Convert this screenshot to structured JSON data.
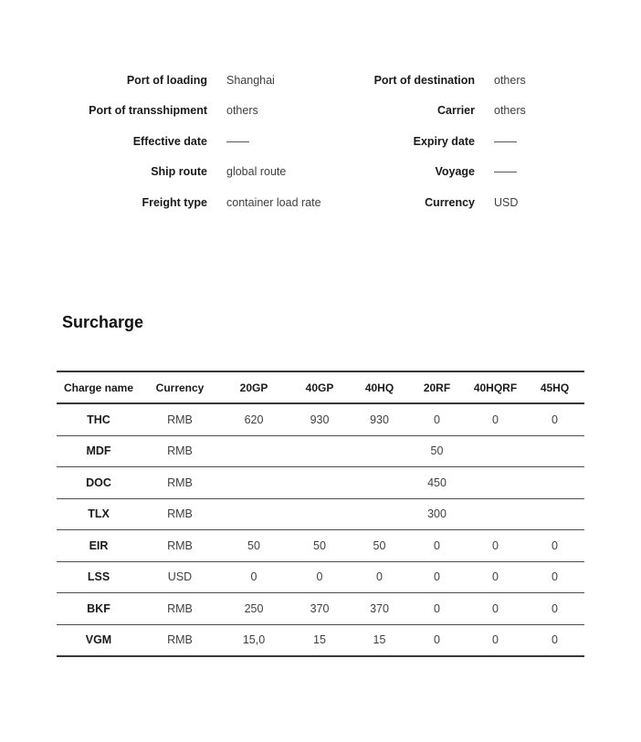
{
  "details": {
    "left": [
      {
        "label": "Port of loading",
        "value": "Shanghai"
      },
      {
        "label": "Port of transshipment",
        "value": "others"
      },
      {
        "label": "Effective date",
        "value": "——"
      },
      {
        "label": "Ship route",
        "value": "global route"
      },
      {
        "label": "Freight type",
        "value": "container load rate"
      }
    ],
    "right": [
      {
        "label": "Port of destination",
        "value": "others"
      },
      {
        "label": "Carrier",
        "value": "others"
      },
      {
        "label": "Expiry date",
        "value": "——"
      },
      {
        "label": "Voyage",
        "value": "——"
      },
      {
        "label": "Currency",
        "value": "USD"
      }
    ]
  },
  "surcharge": {
    "title": "Surcharge",
    "table": {
      "columns": [
        "Charge name",
        "Currency",
        "20GP",
        "40GP",
        "40HQ",
        "20RF",
        "40HQRF",
        "45HQ"
      ],
      "rows": [
        {
          "charge": "THC",
          "currency": "RMB",
          "values": [
            "620",
            "930",
            "930",
            "0",
            "0",
            "0"
          ]
        },
        {
          "charge": "MDF",
          "currency": "RMB",
          "values": [
            "",
            "",
            "",
            "50",
            "",
            ""
          ]
        },
        {
          "charge": "DOC",
          "currency": "RMB",
          "values": [
            "",
            "",
            "",
            "450",
            "",
            ""
          ]
        },
        {
          "charge": "TLX",
          "currency": "RMB",
          "values": [
            "",
            "",
            "",
            "300",
            "",
            ""
          ]
        },
        {
          "charge": "EIR",
          "currency": "RMB",
          "values": [
            "50",
            "50",
            "50",
            "0",
            "0",
            "0"
          ]
        },
        {
          "charge": "LSS",
          "currency": "USD",
          "values": [
            "0",
            "0",
            "0",
            "0",
            "0",
            "0"
          ]
        },
        {
          "charge": "BKF",
          "currency": "RMB",
          "values": [
            "250",
            "370",
            "370",
            "0",
            "0",
            "0"
          ]
        },
        {
          "charge": "VGM",
          "currency": "RMB",
          "values": [
            "15,0",
            "15",
            "15",
            "0",
            "0",
            "0"
          ]
        }
      ]
    }
  },
  "colors": {
    "label_text": "#1a1a1a",
    "value_text": "#3f3f3f",
    "table_line": "#3a3a3a"
  }
}
